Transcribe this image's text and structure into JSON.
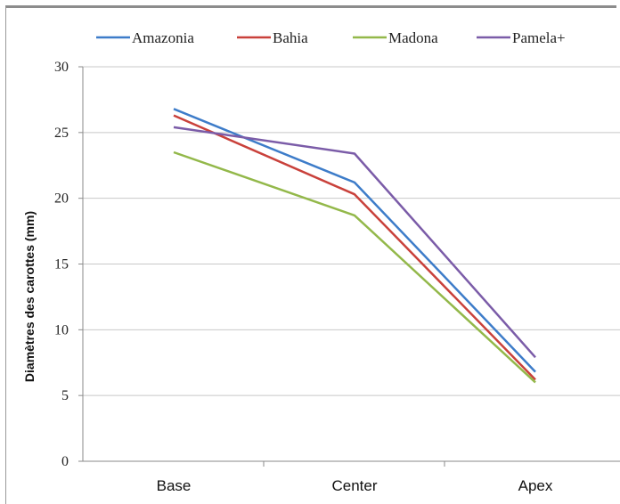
{
  "chart_data": {
    "type": "line",
    "categories": [
      "Base",
      "Center",
      "Apex"
    ],
    "ylabel": "Diamètres des carottes (mm)",
    "xlabel": "",
    "ylim": [
      0,
      30
    ],
    "yticks": [
      0,
      5,
      10,
      15,
      20,
      25,
      30
    ],
    "grid": "horizontal",
    "legend_position": "top",
    "series": [
      {
        "name": "Amazonia",
        "color": "#3d7cc9",
        "values": [
          26.8,
          21.2,
          6.8
        ]
      },
      {
        "name": "Bahia",
        "color": "#c9413b",
        "values": [
          26.3,
          20.3,
          6.2
        ]
      },
      {
        "name": "Madona",
        "color": "#93b84a",
        "values": [
          23.5,
          18.7,
          6.0
        ]
      },
      {
        "name": "Pamela+",
        "color": "#7b5ca8",
        "values": [
          25.4,
          23.4,
          7.9
        ]
      }
    ]
  }
}
